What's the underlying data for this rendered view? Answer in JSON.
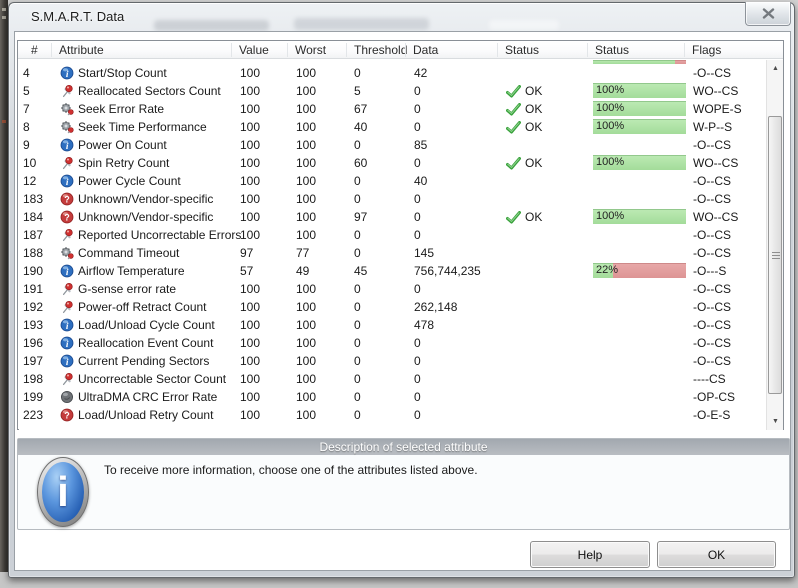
{
  "window": {
    "title": "S.M.A.R.T. Data"
  },
  "table": {
    "headers": {
      "num": "#",
      "attribute": "Attribute",
      "value": "Value",
      "worst": "Worst",
      "threshold": "Threshold",
      "data": "Data",
      "status": "Status",
      "status_bar": "Status",
      "flags": "Flags"
    },
    "ok_label": "OK",
    "percent_suffix": "%",
    "partial_top_row": {
      "bar_percent": 88
    },
    "rows": [
      {
        "id": "4",
        "icon": "info",
        "name": "Start/Stop Count",
        "value": "100",
        "worst": "100",
        "threshold": "0",
        "data": "42",
        "ok": false,
        "bar": null,
        "flags": "-O--CS"
      },
      {
        "id": "5",
        "icon": "pin",
        "name": "Reallocated Sectors Count",
        "value": "100",
        "worst": "100",
        "threshold": "5",
        "data": "0",
        "ok": true,
        "bar": 100,
        "flags": "WO--CS"
      },
      {
        "id": "7",
        "icon": "gear-pin",
        "name": "Seek Error Rate",
        "value": "100",
        "worst": "100",
        "threshold": "67",
        "data": "0",
        "ok": true,
        "bar": 100,
        "flags": "WOPE-S"
      },
      {
        "id": "8",
        "icon": "gear-pin",
        "name": "Seek Time Performance",
        "value": "100",
        "worst": "100",
        "threshold": "40",
        "data": "0",
        "ok": true,
        "bar": 100,
        "flags": "W-P--S"
      },
      {
        "id": "9",
        "icon": "info",
        "name": "Power On Count",
        "value": "100",
        "worst": "100",
        "threshold": "0",
        "data": "85",
        "ok": false,
        "bar": null,
        "flags": "-O--CS"
      },
      {
        "id": "10",
        "icon": "pin",
        "name": "Spin Retry Count",
        "value": "100",
        "worst": "100",
        "threshold": "60",
        "data": "0",
        "ok": true,
        "bar": 100,
        "flags": "WO--CS"
      },
      {
        "id": "12",
        "icon": "info",
        "name": "Power Cycle Count",
        "value": "100",
        "worst": "100",
        "threshold": "0",
        "data": "40",
        "ok": false,
        "bar": null,
        "flags": "-O--CS"
      },
      {
        "id": "183",
        "icon": "question",
        "name": "Unknown/Vendor-specific",
        "value": "100",
        "worst": "100",
        "threshold": "0",
        "data": "0",
        "ok": false,
        "bar": null,
        "flags": "-O--CS"
      },
      {
        "id": "184",
        "icon": "question",
        "name": "Unknown/Vendor-specific",
        "value": "100",
        "worst": "100",
        "threshold": "97",
        "data": "0",
        "ok": true,
        "bar": 100,
        "flags": "WO--CS"
      },
      {
        "id": "187",
        "icon": "pin",
        "name": "Reported Uncorrectable Errors",
        "value": "100",
        "worst": "100",
        "threshold": "0",
        "data": "0",
        "ok": false,
        "bar": null,
        "flags": "-O--CS"
      },
      {
        "id": "188",
        "icon": "gear-pin",
        "name": "Command Timeout",
        "value": "97",
        "worst": "77",
        "threshold": "0",
        "data": "145",
        "ok": false,
        "bar": null,
        "flags": "-O--CS"
      },
      {
        "id": "190",
        "icon": "info",
        "name": "Airflow Temperature",
        "value": "57",
        "worst": "49",
        "threshold": "45",
        "data": "756,744,235",
        "ok": false,
        "bar": 22,
        "flags": "-O---S"
      },
      {
        "id": "191",
        "icon": "pin",
        "name": "G-sense error rate",
        "value": "100",
        "worst": "100",
        "threshold": "0",
        "data": "0",
        "ok": false,
        "bar": null,
        "flags": "-O--CS"
      },
      {
        "id": "192",
        "icon": "pin",
        "name": "Power-off Retract Count",
        "value": "100",
        "worst": "100",
        "threshold": "0",
        "data": "262,148",
        "ok": false,
        "bar": null,
        "flags": "-O--CS"
      },
      {
        "id": "193",
        "icon": "info",
        "name": "Load/Unload Cycle Count",
        "value": "100",
        "worst": "100",
        "threshold": "0",
        "data": "478",
        "ok": false,
        "bar": null,
        "flags": "-O--CS"
      },
      {
        "id": "196",
        "icon": "info",
        "name": "Reallocation Event Count",
        "value": "100",
        "worst": "100",
        "threshold": "0",
        "data": "0",
        "ok": false,
        "bar": null,
        "flags": "-O--CS"
      },
      {
        "id": "197",
        "icon": "info",
        "name": "Current Pending Sectors",
        "value": "100",
        "worst": "100",
        "threshold": "0",
        "data": "0",
        "ok": false,
        "bar": null,
        "flags": "-O--CS"
      },
      {
        "id": "198",
        "icon": "pin",
        "name": "Uncorrectable Sector Count",
        "value": "100",
        "worst": "100",
        "threshold": "0",
        "data": "0",
        "ok": false,
        "bar": null,
        "flags": "----CS"
      },
      {
        "id": "199",
        "icon": "gear",
        "name": "UltraDMA CRC Error Rate",
        "value": "100",
        "worst": "100",
        "threshold": "0",
        "data": "0",
        "ok": false,
        "bar": null,
        "flags": "-OP-CS"
      },
      {
        "id": "223",
        "icon": "question",
        "name": "Load/Unload Retry Count",
        "value": "100",
        "worst": "100",
        "threshold": "0",
        "data": "0",
        "ok": false,
        "bar": null,
        "flags": "-O-E-S"
      }
    ]
  },
  "description": {
    "header": "Description of selected attribute",
    "text": "To receive more information, choose one of the attributes listed above."
  },
  "buttons": {
    "help": "Help",
    "ok": "OK"
  },
  "colors": {
    "bar_green": "#a3dc9a",
    "bar_green_hi": "#bdeab4",
    "bar_red": "#dd9494",
    "bar_red_hi": "#e8a9a9",
    "ok_check": "#3aa23d",
    "info_blue": "#2e6fc0",
    "pin_red": "#d03030",
    "gear_gray": "#8a8f94"
  }
}
